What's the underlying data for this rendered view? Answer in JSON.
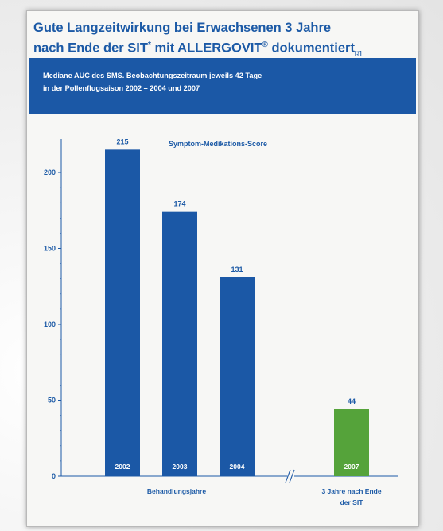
{
  "title": {
    "line1": "Gute Langzeitwirkung bei Erwachsenen 3 Jahre",
    "line2_prefix": "nach Ende der SIT",
    "asterisk": "*",
    "line2_mid": " mit ALLERGOVIT",
    "registered": "®",
    "line2_suffix": " dokumentiert",
    "reference": "[3]"
  },
  "banner": {
    "line1": "Mediane AUC des SMS. Beobachtungszeitraum jeweils 42 Tage",
    "line2": "in der Pollenflugsaison 2002 – 2004 und 2007"
  },
  "colors": {
    "primary": "#1b58a6",
    "treatment_bar": "#1b58a6",
    "followup_bar": "#55a33a",
    "text": "#1c5aa6"
  },
  "chart_data": {
    "type": "bar",
    "series_label": "Symptom-Medikations-Score",
    "categories": [
      "2002",
      "2003",
      "2004",
      "2007"
    ],
    "values": [
      215,
      174,
      131,
      44
    ],
    "value_labels": [
      "215",
      "174",
      "131",
      "44"
    ],
    "bar_colors": [
      "#1b58a6",
      "#1b58a6",
      "#1b58a6",
      "#55a33a"
    ],
    "yticks": [
      0,
      50,
      100,
      150,
      200
    ],
    "ytick_labels": [
      "0",
      "50",
      "100",
      "150",
      "200"
    ],
    "ylim": [
      0,
      240
    ],
    "grid": false,
    "axis_break": "//",
    "groups": [
      {
        "label_lines": [
          "Behandlungsjahre"
        ],
        "categories": [
          "2002",
          "2003",
          "2004"
        ]
      },
      {
        "label_lines": [
          "3 Jahre nach Ende",
          "der SIT"
        ],
        "categories": [
          "2007"
        ]
      }
    ]
  }
}
